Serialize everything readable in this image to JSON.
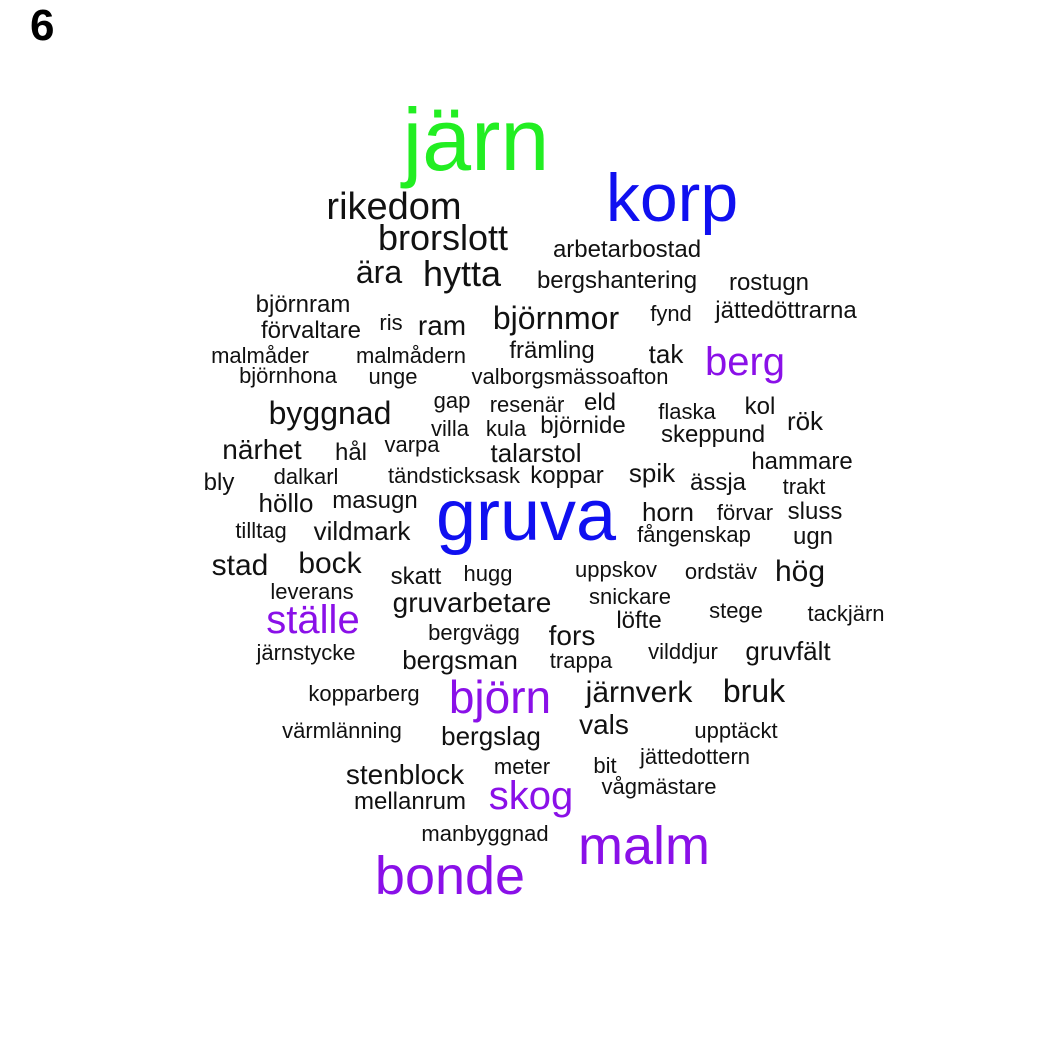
{
  "panel_label": "6",
  "colors": {
    "green": "#22ee22",
    "blue": "#1010f0",
    "purple": "#8a10e8",
    "black": "#111111"
  },
  "words": [
    {
      "text": "järn",
      "c": "green"
    },
    {
      "text": "korp",
      "c": "blue"
    },
    {
      "text": "gruva",
      "c": "blue"
    },
    {
      "text": "bonde",
      "c": "purple"
    },
    {
      "text": "malm",
      "c": "purple"
    },
    {
      "text": "björn",
      "c": "purple"
    },
    {
      "text": "ställe",
      "c": "purple"
    },
    {
      "text": "berg",
      "c": "purple"
    },
    {
      "text": "skog",
      "c": "purple"
    },
    {
      "text": "rikedom",
      "c": "black"
    },
    {
      "text": "brorslott",
      "c": "black"
    },
    {
      "text": "arbetarbostad",
      "c": "black"
    },
    {
      "text": "ära",
      "c": "black"
    },
    {
      "text": "hytta",
      "c": "black"
    },
    {
      "text": "bergshantering",
      "c": "black"
    },
    {
      "text": "rostugn",
      "c": "black"
    },
    {
      "text": "björnram",
      "c": "black"
    },
    {
      "text": "förvaltare",
      "c": "black"
    },
    {
      "text": "ris",
      "c": "black"
    },
    {
      "text": "ram",
      "c": "black"
    },
    {
      "text": "björnmor",
      "c": "black"
    },
    {
      "text": "fynd",
      "c": "black"
    },
    {
      "text": "jättedöttrarna",
      "c": "black"
    },
    {
      "text": "malmåder",
      "c": "black"
    },
    {
      "text": "malmådern",
      "c": "black"
    },
    {
      "text": "främling",
      "c": "black"
    },
    {
      "text": "tak",
      "c": "black"
    },
    {
      "text": "björnhona",
      "c": "black"
    },
    {
      "text": "unge",
      "c": "black"
    },
    {
      "text": "valborgsmässoafton",
      "c": "black"
    },
    {
      "text": "byggnad",
      "c": "black"
    },
    {
      "text": "gap",
      "c": "black"
    },
    {
      "text": "resenär",
      "c": "black"
    },
    {
      "text": "eld",
      "c": "black"
    },
    {
      "text": "flaska",
      "c": "black"
    },
    {
      "text": "kol",
      "c": "black"
    },
    {
      "text": "rök",
      "c": "black"
    },
    {
      "text": "villa",
      "c": "black"
    },
    {
      "text": "kula",
      "c": "black"
    },
    {
      "text": "björnide",
      "c": "black"
    },
    {
      "text": "skeppund",
      "c": "black"
    },
    {
      "text": "närhet",
      "c": "black"
    },
    {
      "text": "hål",
      "c": "black"
    },
    {
      "text": "varpa",
      "c": "black"
    },
    {
      "text": "talarstol",
      "c": "black"
    },
    {
      "text": "hammare",
      "c": "black"
    },
    {
      "text": "bly",
      "c": "black"
    },
    {
      "text": "dalkarl",
      "c": "black"
    },
    {
      "text": "tändsticksask",
      "c": "black"
    },
    {
      "text": "koppar",
      "c": "black"
    },
    {
      "text": "spik",
      "c": "black"
    },
    {
      "text": "ässja",
      "c": "black"
    },
    {
      "text": "trakt",
      "c": "black"
    },
    {
      "text": "höllo",
      "c": "black"
    },
    {
      "text": "masugn",
      "c": "black"
    },
    {
      "text": "horn",
      "c": "black"
    },
    {
      "text": "förvar",
      "c": "black"
    },
    {
      "text": "sluss",
      "c": "black"
    },
    {
      "text": "tilltag",
      "c": "black"
    },
    {
      "text": "vildmark",
      "c": "black"
    },
    {
      "text": "fångenskap",
      "c": "black"
    },
    {
      "text": "ugn",
      "c": "black"
    },
    {
      "text": "stad",
      "c": "black"
    },
    {
      "text": "bock",
      "c": "black"
    },
    {
      "text": "skatt",
      "c": "black"
    },
    {
      "text": "hugg",
      "c": "black"
    },
    {
      "text": "uppskov",
      "c": "black"
    },
    {
      "text": "ordstäv",
      "c": "black"
    },
    {
      "text": "hög",
      "c": "black"
    },
    {
      "text": "leverans",
      "c": "black"
    },
    {
      "text": "gruvarbetare",
      "c": "black"
    },
    {
      "text": "snickare",
      "c": "black"
    },
    {
      "text": "stege",
      "c": "black"
    },
    {
      "text": "tackjärn",
      "c": "black"
    },
    {
      "text": "löfte",
      "c": "black"
    },
    {
      "text": "bergvägg",
      "c": "black"
    },
    {
      "text": "fors",
      "c": "black"
    },
    {
      "text": "järnstycke",
      "c": "black"
    },
    {
      "text": "vilddjur",
      "c": "black"
    },
    {
      "text": "gruvfält",
      "c": "black"
    },
    {
      "text": "bergsman",
      "c": "black"
    },
    {
      "text": "trappa",
      "c": "black"
    },
    {
      "text": "kopparberg",
      "c": "black"
    },
    {
      "text": "järnverk",
      "c": "black"
    },
    {
      "text": "bruk",
      "c": "black"
    },
    {
      "text": "vals",
      "c": "black"
    },
    {
      "text": "värmlänning",
      "c": "black"
    },
    {
      "text": "bergslag",
      "c": "black"
    },
    {
      "text": "upptäckt",
      "c": "black"
    },
    {
      "text": "jättedottern",
      "c": "black"
    },
    {
      "text": "bit",
      "c": "black"
    },
    {
      "text": "meter",
      "c": "black"
    },
    {
      "text": "stenblock",
      "c": "black"
    },
    {
      "text": "vågmästare",
      "c": "black"
    },
    {
      "text": "mellanrum",
      "c": "black"
    },
    {
      "text": "manbyggnad",
      "c": "black"
    }
  ]
}
